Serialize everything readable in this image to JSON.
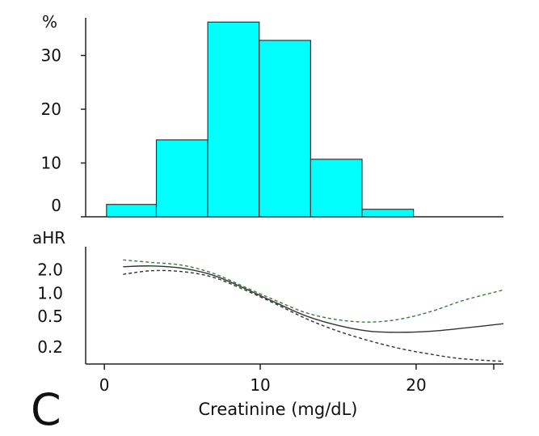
{
  "chart_data": [
    {
      "type": "bar",
      "panel": "histogram",
      "ylabel": "%",
      "y_ticks": [
        "0",
        "10",
        "20",
        "30"
      ],
      "ylim": [
        0,
        37
      ],
      "xlim": [
        0,
        26
      ],
      "bins": [
        {
          "x0": 1.3,
          "x1": 4.4,
          "value": 2.3
        },
        {
          "x0": 4.4,
          "x1": 7.6,
          "value": 14.3
        },
        {
          "x0": 7.6,
          "x1": 10.8,
          "value": 36.2
        },
        {
          "x0": 10.8,
          "x1": 14.0,
          "value": 32.8
        },
        {
          "x0": 14.0,
          "x1": 17.2,
          "value": 10.7
        },
        {
          "x0": 17.2,
          "x1": 20.4,
          "value": 1.4
        }
      ],
      "bar_color": "#00ffff",
      "edge_color": "#333333"
    },
    {
      "type": "line",
      "panel": "hazard",
      "ylabel": "aHR",
      "y_scale": "log",
      "y_ticks": [
        {
          "value": 2.0,
          "label": "2.0"
        },
        {
          "value": 1.0,
          "label": "1.0"
        },
        {
          "value": 0.5,
          "label": "0.5"
        },
        {
          "value": 0.2,
          "label": "0.2"
        }
      ],
      "ylim": [
        0.12,
        4.0
      ],
      "xlim": [
        -1.2,
        25.6
      ],
      "x_ticks": [
        "0",
        "10",
        "20"
      ],
      "xlabel": "Creatinine (mg/dL)",
      "series": [
        {
          "style": "solid",
          "x": [
            1.2,
            3,
            5,
            7,
            9,
            11,
            13,
            15,
            17,
            19,
            21,
            23,
            25.6
          ],
          "values": [
            2.2,
            2.25,
            2.1,
            1.7,
            1.15,
            0.75,
            0.5,
            0.38,
            0.32,
            0.31,
            0.32,
            0.35,
            0.4
          ]
        },
        {
          "style": "dashed",
          "color": "#3a7a3a",
          "x": [
            1.2,
            3,
            5,
            7,
            9,
            11,
            13,
            15,
            17,
            19,
            21,
            23,
            25.6
          ],
          "values": [
            2.7,
            2.5,
            2.3,
            1.8,
            1.2,
            0.8,
            0.55,
            0.45,
            0.42,
            0.46,
            0.58,
            0.8,
            1.1
          ]
        },
        {
          "style": "dashed",
          "x": [
            1.2,
            3,
            5,
            7,
            9,
            11,
            13,
            15,
            17,
            19,
            21,
            23,
            25.6
          ],
          "values": [
            1.75,
            1.95,
            1.9,
            1.6,
            1.1,
            0.72,
            0.46,
            0.32,
            0.24,
            0.19,
            0.16,
            0.14,
            0.13
          ]
        }
      ]
    }
  ],
  "panel_label": "C"
}
